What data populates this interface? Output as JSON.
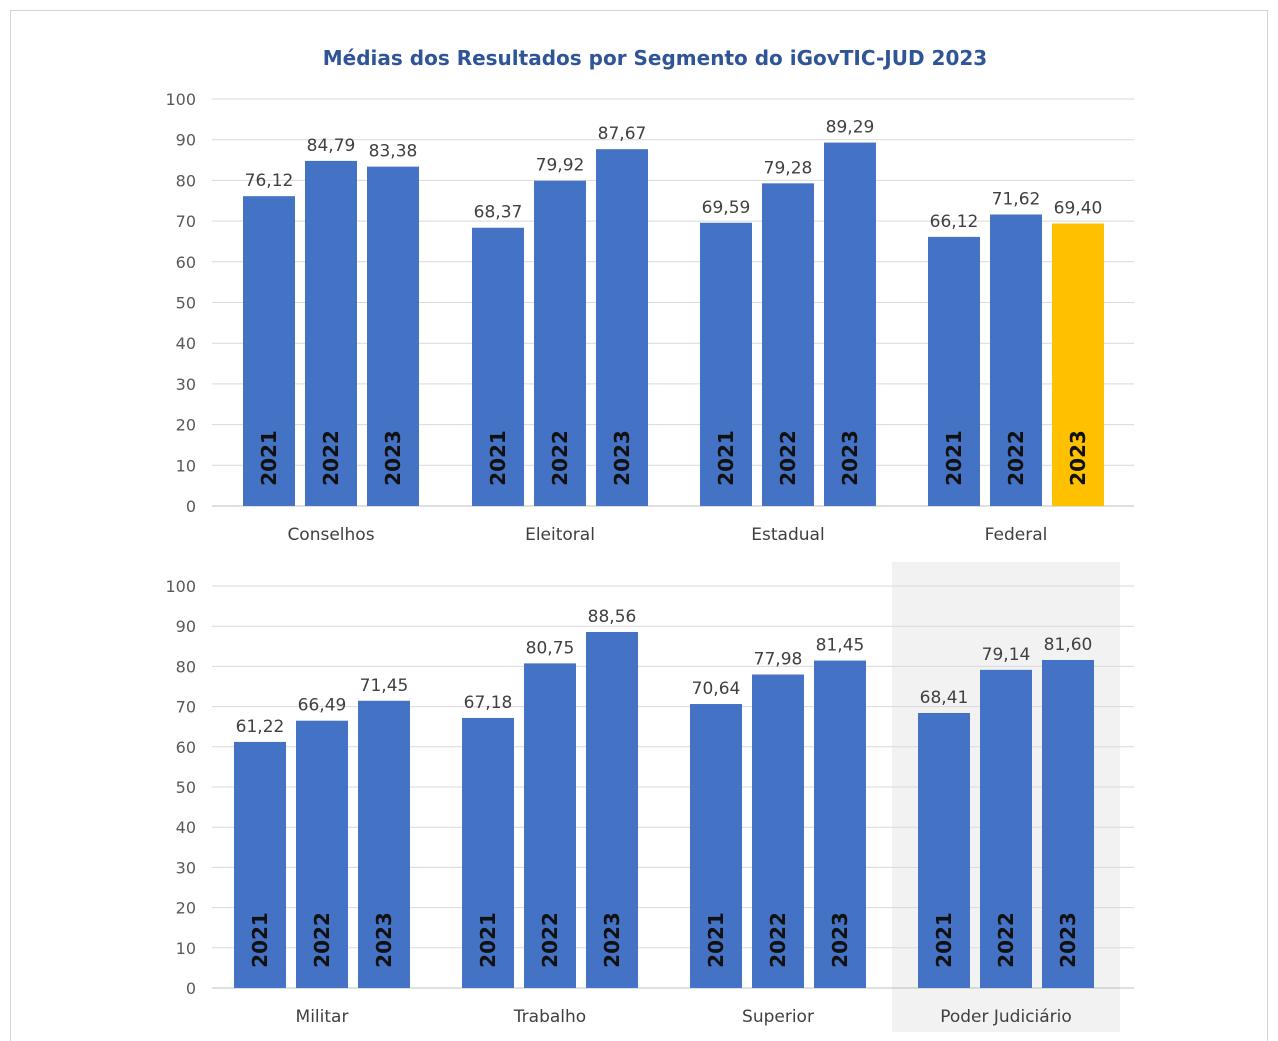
{
  "colors": {
    "bar": "#4472c4",
    "highlight": "#ffc000",
    "title": "#2f5597",
    "shade": "#f2f2f2"
  },
  "chart_data": [
    {
      "type": "bar",
      "title": "Médias dos Resultados por Segmento do iGovTIC-JUD 2023",
      "ylim": [
        0,
        100
      ],
      "yticks": [
        "0",
        "10",
        "20",
        "30",
        "40",
        "50",
        "60",
        "70",
        "80",
        "90",
        "100"
      ],
      "grid": true,
      "series_labels": [
        "2021",
        "2022",
        "2023"
      ],
      "groups": [
        {
          "category": "Conselhos",
          "values": [
            76.12,
            84.79,
            83.38
          ],
          "labels": [
            "76,12",
            "84,79",
            "83,38"
          ]
        },
        {
          "category": "Eleitoral",
          "values": [
            68.37,
            79.92,
            87.67
          ],
          "labels": [
            "68,37",
            "79,92",
            "87,67"
          ]
        },
        {
          "category": "Estadual",
          "values": [
            69.59,
            79.28,
            89.29
          ],
          "labels": [
            "69,59",
            "79,28",
            "89,29"
          ]
        },
        {
          "category": "Federal",
          "values": [
            66.12,
            71.62,
            69.4
          ],
          "labels": [
            "66,12",
            "71,62",
            "69,40"
          ],
          "highlight_index": 2
        }
      ]
    },
    {
      "type": "bar",
      "ylim": [
        0,
        100
      ],
      "yticks": [
        "0",
        "10",
        "20",
        "30",
        "40",
        "50",
        "60",
        "70",
        "80",
        "90",
        "100"
      ],
      "grid": true,
      "series_labels": [
        "2021",
        "2022",
        "2023"
      ],
      "groups": [
        {
          "category": "Militar",
          "values": [
            61.22,
            66.49,
            71.45
          ],
          "labels": [
            "61,22",
            "66,49",
            "71,45"
          ]
        },
        {
          "category": "Trabalho",
          "values": [
            67.18,
            80.75,
            88.56
          ],
          "labels": [
            "67,18",
            "80,75",
            "88,56"
          ]
        },
        {
          "category": "Superior",
          "values": [
            70.64,
            77.98,
            81.45
          ],
          "labels": [
            "70,64",
            "77,98",
            "81,45"
          ]
        },
        {
          "category": "Poder Judiciário",
          "values": [
            68.41,
            79.14,
            81.6
          ],
          "labels": [
            "68,41",
            "79,14",
            "81,60"
          ],
          "shaded": true
        }
      ]
    }
  ]
}
